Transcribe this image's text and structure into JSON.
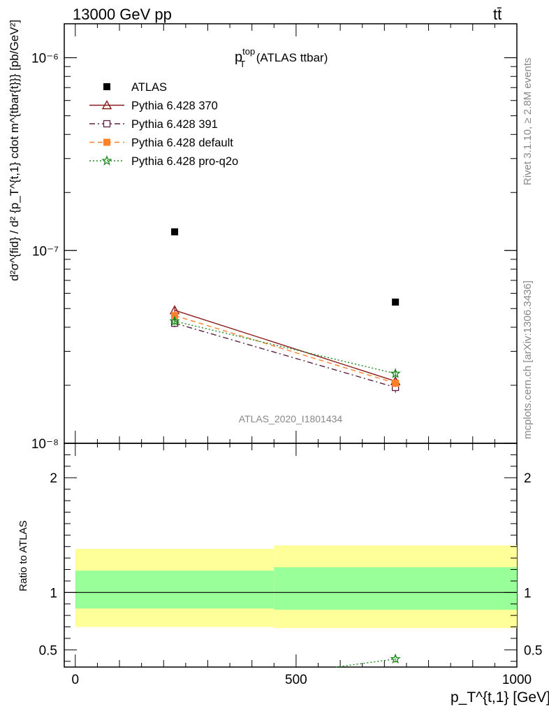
{
  "header": {
    "energy_label": "13000 GeV pp",
    "process_label": "tt̄"
  },
  "side_labels": {
    "rivet": "Rivet 3.1.10, ≥ 2.8M events",
    "mcplots": "mcplots.cern.ch [arXiv:1306.3436]"
  },
  "chart_data": [
    {
      "type": "scatter",
      "panel": "main",
      "title": {
        "main": "p",
        "sup": "top",
        "sub": "T",
        "suffix": "(ATLAS ttbar)"
      },
      "watermark": "ATLAS_2020_I1801434",
      "ylabel": "d²σ^{fid} / d² {p_T^{t,1} cdot m^{tbar{t}}} [pb/GeV²]",
      "yscale": "log",
      "ylim": [
        1e-08,
        1.5e-06
      ],
      "xlim": [
        -25,
        1000
      ],
      "y_ticks": [
        "10⁻⁸",
        "10⁻⁷",
        "10⁻⁶"
      ],
      "legend_position": "top-left",
      "series": [
        {
          "name": "ATLAS",
          "color": "#000000",
          "marker": "square-filled",
          "line": "none",
          "x": [
            225,
            725
          ],
          "y": [
            1.25e-07,
            5.4e-08
          ]
        },
        {
          "name": "Pythia 6.428 370",
          "color": "#8b1a1a",
          "marker": "triangle-open",
          "line": "solid",
          "x": [
            225,
            725
          ],
          "y": [
            4.9e-08,
            2.1e-08
          ],
          "err": [
            2.5e-09,
            1e-09
          ]
        },
        {
          "name": "Pythia 6.428 391",
          "color": "#5b2040",
          "marker": "square-open",
          "line": "dashdot",
          "x": [
            225,
            725
          ],
          "y": [
            4.2e-08,
            1.95e-08
          ],
          "err": [
            2e-09,
            1.2e-09
          ]
        },
        {
          "name": "Pythia 6.428 default",
          "color": "#ff7f2a",
          "marker": "square-filled",
          "line": "dashed",
          "x": [
            225,
            725
          ],
          "y": [
            4.6e-08,
            2.05e-08
          ],
          "err": [
            2e-09,
            1e-09
          ]
        },
        {
          "name": "Pythia 6.428 pro-q2o",
          "color": "#1a8a1a",
          "marker": "star",
          "line": "dotted",
          "x": [
            225,
            725
          ],
          "y": [
            4.3e-08,
            2.3e-08
          ],
          "err": [
            2e-09,
            1.2e-09
          ]
        }
      ]
    },
    {
      "type": "scatter",
      "panel": "ratio",
      "ylabel": "Ratio to ATLAS",
      "xlabel": "p_T^{t,1} [GeV]",
      "ylim": [
        0.35,
        2.3
      ],
      "xlim": [
        -25,
        1000
      ],
      "y_ticks": [
        "0.5",
        "1",
        "2"
      ],
      "x_ticks": [
        "0",
        "500",
        "1000"
      ],
      "bands": [
        {
          "x0": 0,
          "x1": 450,
          "yellow": [
            0.7,
            1.38
          ],
          "green": [
            0.86,
            1.19
          ]
        },
        {
          "x0": 450,
          "x1": 1000,
          "yellow": [
            0.69,
            1.41
          ],
          "green": [
            0.85,
            1.22
          ]
        }
      ],
      "reference": 1.0,
      "series": [
        {
          "name": "Pythia 6.428 pro-q2o",
          "color": "#1a8a1a",
          "marker": "star",
          "x": [
            590,
            725
          ],
          "y": [
            0.34,
            0.42
          ],
          "err": [
            0,
            0.03
          ]
        }
      ]
    }
  ]
}
